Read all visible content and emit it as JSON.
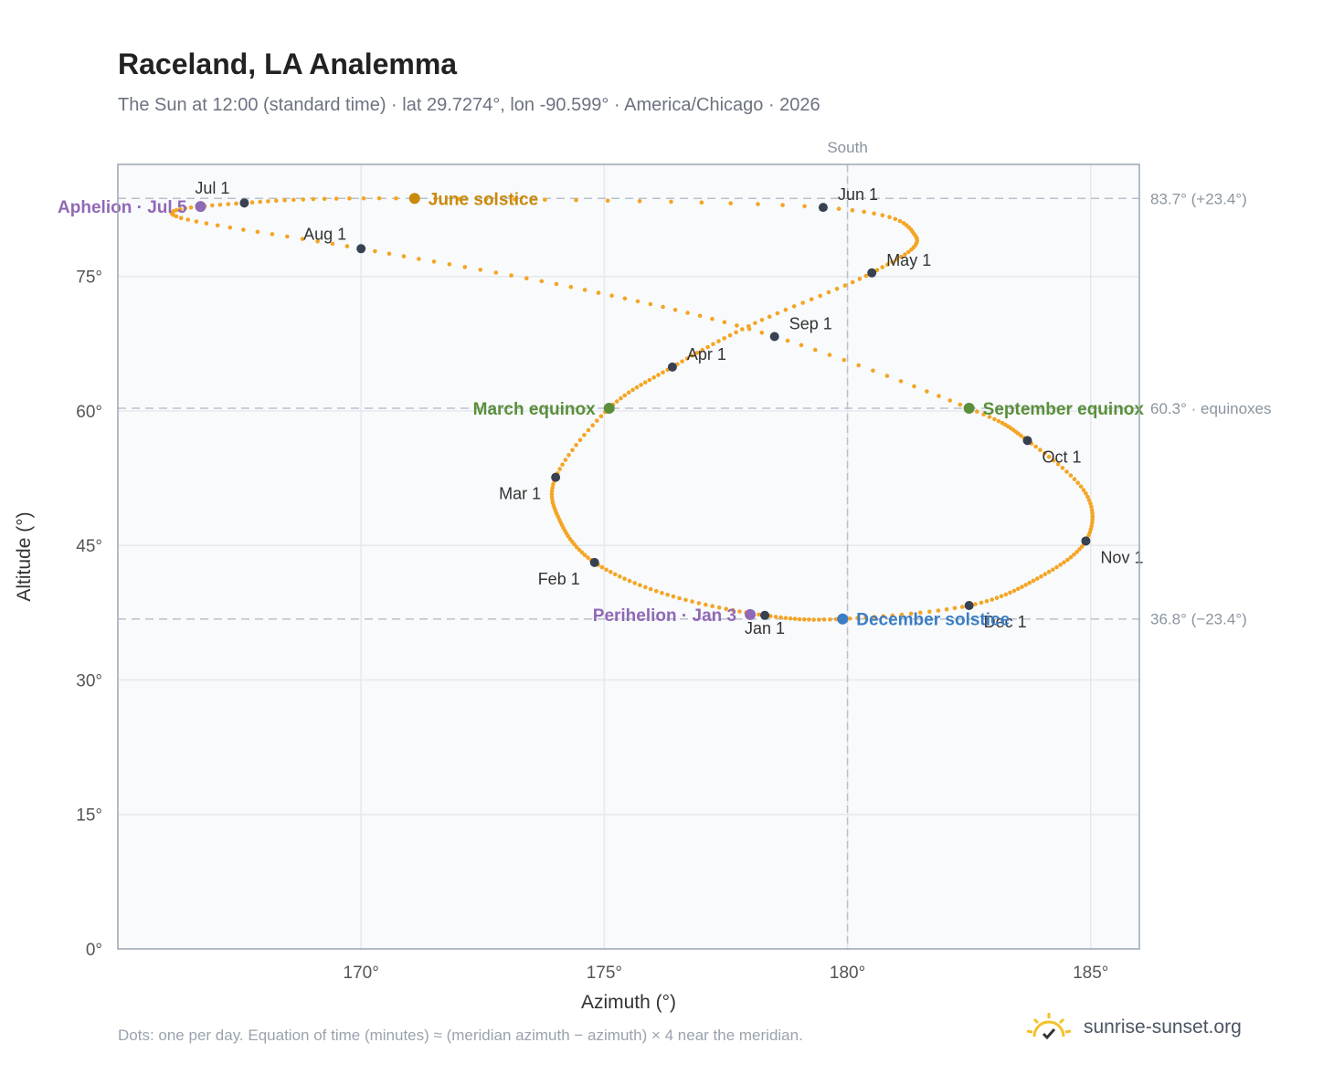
{
  "header": {
    "title": "Raceland, LA Analemma",
    "subtitle": "The Sun at 12:00 (standard time) · lat 29.7274°, lon -90.599° · America/Chicago · 2026"
  },
  "footer": {
    "note": "Dots: one per day. Equation of time (minutes) ≈ (meridian azimuth − azimuth) × 4 near the meridian.",
    "brand": "sunrise-sunset.org",
    "brand_icon": "sun-logo-icon"
  },
  "colors": {
    "path": "#f4a524",
    "month_marker": "#374151",
    "june_solstice": "#c98a0a",
    "equinox": "#5a8f3a",
    "december_solstice": "#3b7dc4",
    "apsis": "#9069b5",
    "grid": "#e5e9ee",
    "plot_bg": "#f8fafc",
    "frame": "#9aa6b4",
    "reference_line": "#b8c1cb"
  },
  "chart_data": {
    "type": "scatter",
    "xlabel": "Azimuth (°)",
    "ylabel": "Altitude (°)",
    "xlim": [
      165,
      186
    ],
    "ylim": [
      0,
      87.5
    ],
    "x_ticks": [
      170,
      175,
      180,
      185
    ],
    "x_tick_labels": [
      "170°",
      "175°",
      "180°",
      "185°"
    ],
    "y_ticks": [
      0,
      15,
      30,
      45,
      60,
      75
    ],
    "y_tick_labels": [
      "0°",
      "15°",
      "30°",
      "45°",
      "60°",
      "75°"
    ],
    "grid": true,
    "meridian": {
      "azimuth": 180,
      "label": "South"
    },
    "reference_lines": [
      {
        "altitude": 83.7,
        "label": "83.7° (+23.4°)"
      },
      {
        "altitude": 60.3,
        "label": "60.3° · equinoxes"
      },
      {
        "altitude": 36.8,
        "label": "36.8° (−23.4°)"
      }
    ],
    "path_control_points": [
      {
        "date": "Jan 1",
        "azimuth": 178.3,
        "altitude": 37.2
      },
      {
        "date": "Jan 15",
        "azimuth": 176.3,
        "altitude": 39.5
      },
      {
        "date": "Feb 1",
        "azimuth": 174.8,
        "altitude": 43.1
      },
      {
        "date": "Feb 15",
        "azimuth": 174.1,
        "altitude": 47.6
      },
      {
        "date": "Mar 1",
        "azimuth": 174.0,
        "altitude": 52.6
      },
      {
        "date": "Mar 20",
        "azimuth": 175.1,
        "altitude": 60.3
      },
      {
        "date": "Apr 1",
        "azimuth": 176.4,
        "altitude": 64.9
      },
      {
        "date": "Apr 15",
        "azimuth": 178.1,
        "altitude": 69.8
      },
      {
        "date": "May 1",
        "azimuth": 180.5,
        "altitude": 75.4
      },
      {
        "date": "May 15",
        "azimuth": 181.4,
        "altitude": 79.5
      },
      {
        "date": "Jun 1",
        "azimuth": 179.5,
        "altitude": 82.7
      },
      {
        "date": "Jun 21",
        "azimuth": 171.1,
        "altitude": 83.7
      },
      {
        "date": "Jul 1",
        "azimuth": 167.6,
        "altitude": 83.2
      },
      {
        "date": "Jul 15",
        "azimuth": 166.2,
        "altitude": 81.7
      },
      {
        "date": "Aug 1",
        "azimuth": 170.0,
        "altitude": 78.1
      },
      {
        "date": "Aug 15",
        "azimuth": 174.6,
        "altitude": 73.5
      },
      {
        "date": "Sep 1",
        "azimuth": 178.5,
        "altitude": 68.3
      },
      {
        "date": "Sep 22",
        "azimuth": 182.5,
        "altitude": 60.3
      },
      {
        "date": "Oct 1",
        "azimuth": 183.7,
        "altitude": 56.7
      },
      {
        "date": "Oct 15",
        "azimuth": 184.9,
        "altitude": 50.8
      },
      {
        "date": "Nov 1",
        "azimuth": 184.9,
        "altitude": 45.5
      },
      {
        "date": "Nov 15",
        "azimuth": 183.9,
        "altitude": 41.3
      },
      {
        "date": "Dec 1",
        "azimuth": 182.5,
        "altitude": 38.3
      },
      {
        "date": "Dec 21",
        "azimuth": 179.9,
        "altitude": 36.8
      },
      {
        "date": "Jan 1",
        "azimuth": 178.3,
        "altitude": 37.2
      }
    ],
    "month_markers": [
      {
        "label": "Jan 1",
        "azimuth": 178.3,
        "altitude": 37.2,
        "label_side": "below"
      },
      {
        "label": "Feb 1",
        "azimuth": 174.8,
        "altitude": 43.1,
        "label_side": "lower-left"
      },
      {
        "label": "Mar 1",
        "azimuth": 174.0,
        "altitude": 52.6,
        "label_side": "lower-left"
      },
      {
        "label": "Apr 1",
        "azimuth": 176.4,
        "altitude": 64.9,
        "label_side": "upper-right"
      },
      {
        "label": "May 1",
        "azimuth": 180.5,
        "altitude": 75.4,
        "label_side": "upper-right"
      },
      {
        "label": "Jun 1",
        "azimuth": 179.5,
        "altitude": 82.7,
        "label_side": "upper-right"
      },
      {
        "label": "Jul 1",
        "azimuth": 167.6,
        "altitude": 83.2,
        "label_side": "upper-left"
      },
      {
        "label": "Aug 1",
        "azimuth": 170.0,
        "altitude": 78.1,
        "label_side": "upper-left"
      },
      {
        "label": "Sep 1",
        "azimuth": 178.5,
        "altitude": 68.3,
        "label_side": "upper-right"
      },
      {
        "label": "Oct 1",
        "azimuth": 183.7,
        "altitude": 56.7,
        "label_side": "lower-right"
      },
      {
        "label": "Nov 1",
        "azimuth": 184.9,
        "altitude": 45.5,
        "label_side": "lower-right"
      },
      {
        "label": "Dec 1",
        "azimuth": 182.5,
        "altitude": 38.3,
        "label_side": "lower-right"
      }
    ],
    "events": [
      {
        "label": "June solstice",
        "azimuth": 171.1,
        "altitude": 83.7,
        "color_key": "june_solstice",
        "label_side": "right"
      },
      {
        "label": "March equinox",
        "azimuth": 175.1,
        "altitude": 60.3,
        "color_key": "equinox",
        "label_side": "left"
      },
      {
        "label": "September equinox",
        "azimuth": 182.5,
        "altitude": 60.3,
        "color_key": "equinox",
        "label_side": "right"
      },
      {
        "label": "December solstice",
        "azimuth": 179.9,
        "altitude": 36.8,
        "color_key": "december_solstice",
        "label_side": "right"
      },
      {
        "label": "Aphelion · Jul 5",
        "azimuth": 166.7,
        "altitude": 82.8,
        "color_key": "apsis",
        "label_side": "left"
      },
      {
        "label": "Perihelion · Jan 3",
        "azimuth": 178.0,
        "altitude": 37.3,
        "color_key": "apsis",
        "label_side": "left"
      }
    ]
  }
}
